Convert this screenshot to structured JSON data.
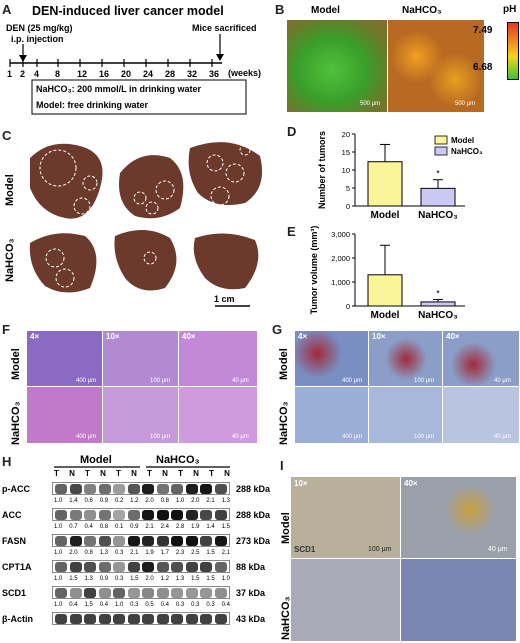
{
  "panelA": {
    "letter": "A",
    "title": "DEN-induced liver cancer model",
    "den_label": "DEN (25 mg/kg)",
    "ip_label": "i.p. injection",
    "sacrificed_label": "Mice sacrificed",
    "axis_ticks": [
      "1",
      "2",
      "4",
      "8",
      "12",
      "16",
      "20",
      "24",
      "28",
      "32",
      "36"
    ],
    "weeks_label": "(weeks)",
    "nahco3_line": "NaHCO₃: 200 mmol/L in drinking water",
    "model_line": "Model: free drinking water"
  },
  "panelB": {
    "letter": "B",
    "model_label": "Model",
    "nahco3_label": "NaHCO₃",
    "ph_label": "pH",
    "ph_high": "7.49",
    "ph_low": "6.68",
    "scale": "500 μm",
    "colors": {
      "green": "#3db72a",
      "orange": "#e07b1f",
      "scale_red": "#e23a1f",
      "scale_yellow": "#f4d21f",
      "scale_green": "#3dc23a"
    }
  },
  "panelC": {
    "letter": "C",
    "model_label": "Model",
    "nahco3_label": "NaHCO₃",
    "scale_label": "1 cm"
  },
  "panelD": {
    "letter": "D",
    "chart_data": {
      "type": "bar",
      "categories": [
        "Model",
        "NaHCO₃"
      ],
      "values": [
        12.3,
        4.9
      ],
      "errors": [
        4.8,
        2.4
      ],
      "ylabel": "Number of tumors",
      "ylim": [
        0,
        20
      ],
      "yticks": [
        "0",
        "5",
        "10",
        "15",
        "20"
      ],
      "legend": [
        "Model",
        "NaHCO₃"
      ],
      "colors": [
        "#fbf59a",
        "#c9c9f3"
      ],
      "significance": "*"
    }
  },
  "panelE": {
    "letter": "E",
    "chart_data": {
      "type": "bar",
      "categories": [
        "Model",
        "NaHCO₃"
      ],
      "values": [
        1300,
        170
      ],
      "errors": [
        1230,
        100
      ],
      "ylabel": "Tumor volume (mm³)",
      "ylim": [
        0,
        3000
      ],
      "yticks": [
        "0",
        "1,000",
        "2,000",
        "3,000"
      ],
      "colors": [
        "#fbf59a",
        "#c9c9f3"
      ],
      "significance": "*"
    }
  },
  "panelF": {
    "letter": "F",
    "model_label": "Model",
    "nahco3_label": "NaHCO₃",
    "mags": [
      "4×",
      "10×",
      "40×"
    ],
    "scales": [
      "400 μm",
      "100 μm",
      "40 μm"
    ]
  },
  "panelG": {
    "letter": "G",
    "model_label": "Model",
    "nahco3_label": "NaHCO₃",
    "mags": [
      "4×",
      "10×",
      "40×"
    ],
    "scales": [
      "400 μm",
      "100 μm",
      "40 μm"
    ]
  },
  "panelH": {
    "letter": "H",
    "group_model": "Model",
    "group_nahco3": "NaHCO₃",
    "lanes": [
      "T",
      "N",
      "T",
      "N",
      "T",
      "N",
      "T",
      "N",
      "T",
      "N",
      "T",
      "N"
    ],
    "rows": [
      {
        "name": "p-ACC",
        "kda": "288 kDa",
        "values": [
          "1.0",
          "1.4",
          "0.6",
          "0.9",
          "0.2",
          "1.2",
          "2.0",
          "0.8",
          "1.0",
          "2.0",
          "2.1",
          "1.3"
        ]
      },
      {
        "name": "ACC",
        "kda": "288 kDa",
        "values": [
          "1.0",
          "0.7",
          "0.4",
          "0.8",
          "0.1",
          "0.9",
          "2.1",
          "2.4",
          "2.8",
          "1.9",
          "1.4",
          "1.5"
        ]
      },
      {
        "name": "FASN",
        "kda": "273 kDa",
        "values": [
          "1.0",
          "2.0",
          "0.8",
          "1.3",
          "0.3",
          "2.1",
          "1.9",
          "1.7",
          "2.3",
          "2.5",
          "1.5",
          "2.1"
        ]
      },
      {
        "name": "CPT1A",
        "kda": "88 kDa",
        "values": [
          "1.0",
          "1.5",
          "1.3",
          "0.9",
          "0.3",
          "1.5",
          "2.0",
          "1.2",
          "1.3",
          "1.5",
          "1.5",
          "1.0"
        ]
      },
      {
        "name": "SCD1",
        "kda": "37 kDa",
        "values": [
          "1.0",
          "0.4",
          "1.5",
          "0.4",
          "1.0",
          "0.3",
          "0.5",
          "0.4",
          "0.3",
          "0.3",
          "0.3",
          "0.4"
        ]
      },
      {
        "name": "β-Actin",
        "kda": "43 kDa",
        "values": []
      }
    ]
  },
  "panelI": {
    "letter": "I",
    "model_label": "Model",
    "nahco3_label": "NaHCO₃",
    "mags": [
      "10×",
      "40×"
    ],
    "scd1_label": "SCD1",
    "scales": [
      "100 μm",
      "40 μm"
    ]
  }
}
